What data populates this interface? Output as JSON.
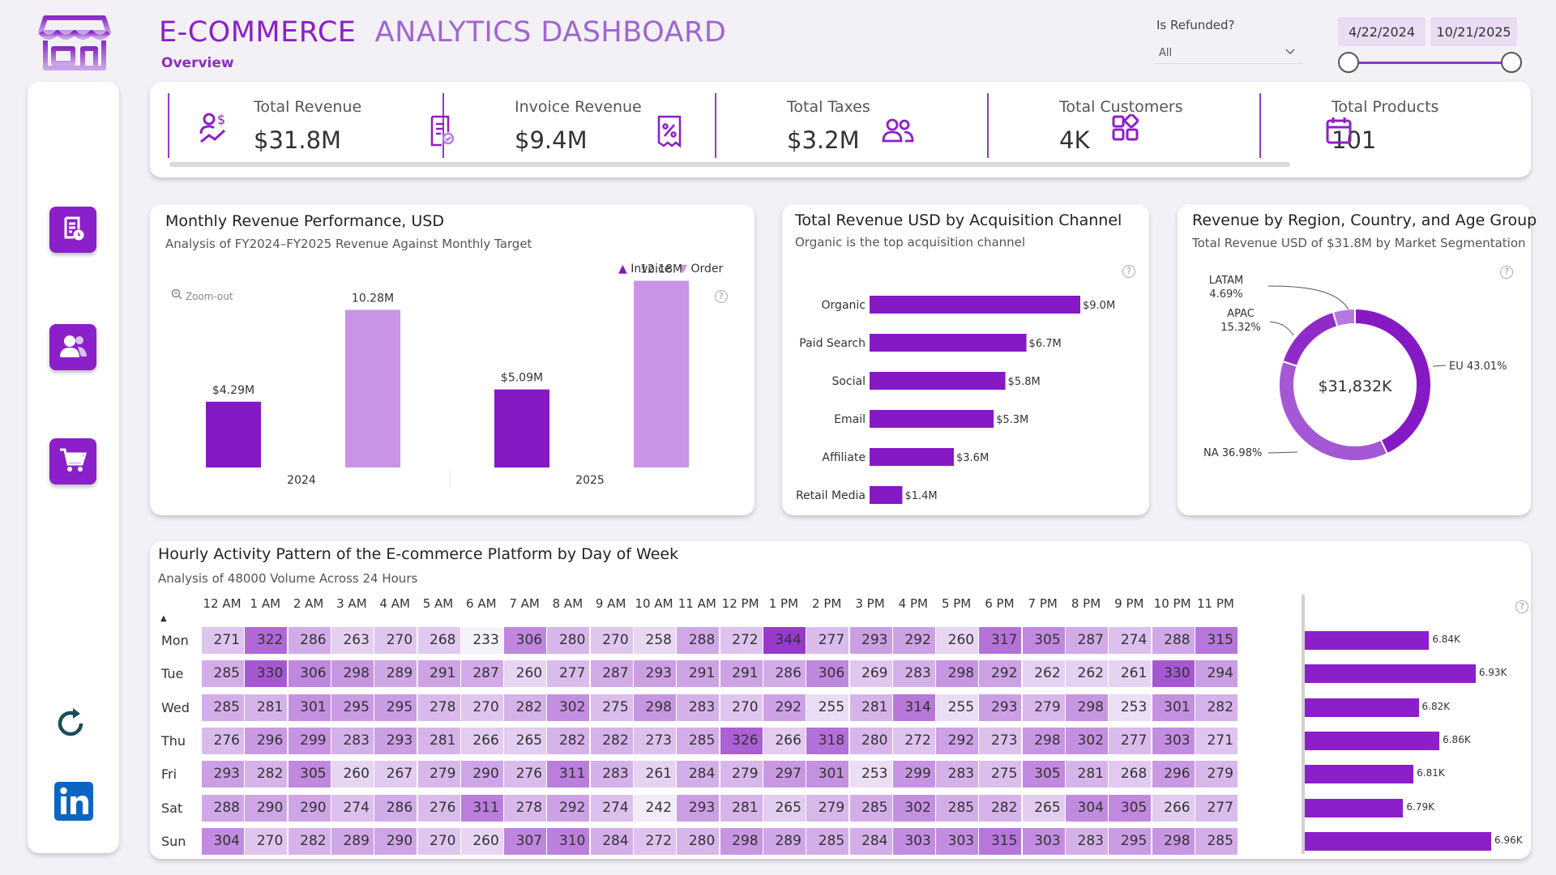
{
  "header": {
    "title_part1": "E-COMMERCE",
    "title_part2": "ANALYTICS DASHBOARD",
    "subtitle": "Overview"
  },
  "filters": {
    "refund_label": "Is Refunded?",
    "refund_value": "All",
    "date_start": "4/22/2024",
    "date_end": "10/21/2025"
  },
  "sidebar": {
    "items": [
      {
        "name": "invoice-icon"
      },
      {
        "name": "customers-icon"
      },
      {
        "name": "cart-icon"
      }
    ],
    "refresh_icon": "refresh-icon",
    "linkedin_icon": "linkedin-icon"
  },
  "kpis": [
    {
      "label": "Total Revenue",
      "value": "$31.8M",
      "icon": "revenue-icon"
    },
    {
      "label": "Invoice Revenue",
      "value": "$9.4M",
      "icon": "invoice-icon"
    },
    {
      "label": "Total Taxes",
      "value": "$3.2M",
      "icon": "tax-icon"
    },
    {
      "label": "Total Customers",
      "value": "4K",
      "icon": "customers-icon"
    },
    {
      "label": "Total Products",
      "value": "101",
      "icon": "products-icon"
    }
  ],
  "monthly": {
    "title": "Monthly Revenue Performance, USD",
    "subtitle": "Analysis of FY2024–FY2025 Revenue Against Monthly Target",
    "zoom_label": "Zoom-out",
    "legend": [
      "Invoice",
      "Order"
    ],
    "colors": {
      "invoice": "#8519c4",
      "order": "#c993e6"
    }
  },
  "channel": {
    "title": "Total Revenue USD by Acquisition Channel",
    "subtitle": "Organic is the top acquisition channel",
    "color": "#8519c4"
  },
  "region": {
    "title": "Revenue by Region, Country, and Age Group",
    "subtitle": "Total Revenue USD of $31.8M by Market Segmentation",
    "center_label": "$31,832K",
    "labels": {
      "latam_name": "LATAM",
      "latam_pct": "4.69%",
      "apac_name": "APAC",
      "apac_pct": "15.32%",
      "eu": "EU 43.01%",
      "na": "NA 36.98%"
    }
  },
  "heatmap": {
    "title": "Hourly Activity Pattern of the E-commerce Platform by Day of Week",
    "subtitle": "Analysis of 48000 Volume Across 24 Hours",
    "hours": [
      "12 AM",
      "1 AM",
      "2 AM",
      "3 AM",
      "4 AM",
      "5 AM",
      "6 AM",
      "7 AM",
      "8 AM",
      "9 AM",
      "10 AM",
      "11 AM",
      "12 PM",
      "1 PM",
      "2 PM",
      "3 PM",
      "4 PM",
      "5 PM",
      "6 PM",
      "7 PM",
      "8 PM",
      "9 PM",
      "10 PM",
      "11 PM"
    ],
    "days": [
      "Mon",
      "Tue",
      "Wed",
      "Thu",
      "Fri",
      "Sat",
      "Sun"
    ],
    "values": [
      [
        271,
        322,
        286,
        263,
        270,
        268,
        233,
        306,
        280,
        270,
        258,
        288,
        272,
        344,
        277,
        293,
        292,
        260,
        317,
        305,
        287,
        274,
        288,
        315
      ],
      [
        285,
        330,
        306,
        298,
        289,
        291,
        287,
        260,
        277,
        287,
        293,
        291,
        291,
        286,
        306,
        269,
        283,
        298,
        292,
        262,
        262,
        261,
        330,
        294
      ],
      [
        285,
        281,
        301,
        295,
        295,
        278,
        270,
        282,
        302,
        275,
        298,
        283,
        270,
        292,
        255,
        281,
        314,
        255,
        293,
        279,
        298,
        253,
        301,
        282
      ],
      [
        276,
        296,
        299,
        283,
        293,
        281,
        266,
        265,
        282,
        282,
        273,
        285,
        326,
        266,
        318,
        280,
        272,
        292,
        273,
        298,
        302,
        277,
        303,
        271
      ],
      [
        293,
        282,
        305,
        260,
        267,
        279,
        290,
        276,
        311,
        283,
        261,
        284,
        279,
        297,
        301,
        253,
        299,
        283,
        275,
        305,
        281,
        268,
        296,
        279
      ],
      [
        288,
        290,
        290,
        274,
        286,
        276,
        311,
        278,
        292,
        274,
        242,
        293,
        281,
        265,
        279,
        285,
        302,
        285,
        282,
        265,
        304,
        305,
        266,
        277
      ],
      [
        304,
        270,
        282,
        289,
        290,
        270,
        260,
        307,
        310,
        284,
        272,
        280,
        298,
        289,
        285,
        284,
        303,
        303,
        315,
        303,
        283,
        295,
        298,
        285
      ]
    ],
    "totals": [
      6.84,
      6.93,
      6.82,
      6.86,
      6.81,
      6.79,
      6.96
    ],
    "total_labels": [
      "6.84K",
      "6.93K",
      "6.82K",
      "6.86K",
      "6.81K",
      "6.79K",
      "6.96K"
    ]
  },
  "chart_data": [
    {
      "type": "bar",
      "title": "Monthly Revenue Performance, USD",
      "categories": [
        "2024",
        "2025"
      ],
      "series": [
        {
          "name": "Invoice",
          "values": [
            4.29,
            5.09
          ],
          "labels": [
            "$4.29M",
            "$5.09M"
          ]
        },
        {
          "name": "Order",
          "values": [
            10.28,
            12.18
          ],
          "labels": [
            "10.28M",
            "12.18M"
          ]
        }
      ],
      "ylim": [
        0,
        13
      ]
    },
    {
      "type": "bar",
      "title": "Total Revenue USD by Acquisition Channel",
      "orientation": "horizontal",
      "categories": [
        "Organic",
        "Paid Search",
        "Social",
        "Email",
        "Affiliate",
        "Retail Media"
      ],
      "values": [
        9.0,
        6.7,
        5.8,
        5.3,
        3.6,
        1.4
      ],
      "labels": [
        "$9.0M",
        "$6.7M",
        "$5.8M",
        "$5.3M",
        "$3.6M",
        "$1.4M"
      ],
      "xlim": [
        0,
        9.0
      ]
    },
    {
      "type": "pie",
      "title": "Revenue by Region, Country, and Age Group",
      "categories": [
        "EU",
        "NA",
        "APAC",
        "LATAM"
      ],
      "values": [
        43.01,
        36.98,
        15.32,
        4.69
      ]
    }
  ]
}
